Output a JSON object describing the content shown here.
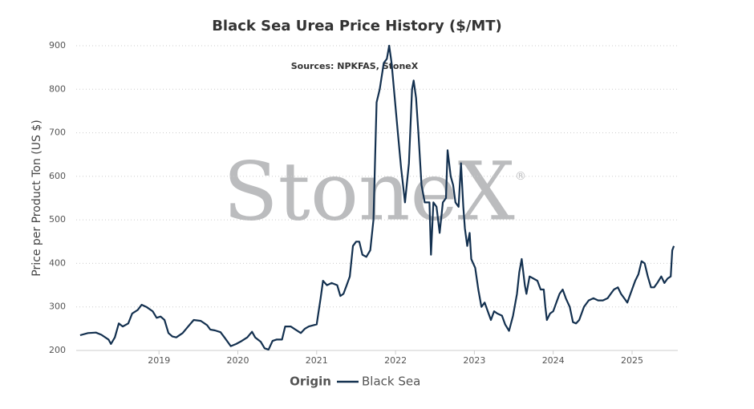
{
  "chart_data": {
    "type": "line",
    "title": "Black Sea Urea Price History ($/MT)",
    "subtitle": "Sources: NPKFAS, StoneX",
    "y_label": "Price per Product Ton (US $)",
    "watermark": "StoneX",
    "watermark_mark": "®",
    "legend_title": "Origin",
    "legend": "bottom",
    "grid": true,
    "xlim": [
      2017.95,
      2025.58
    ],
    "xticks": [
      2019,
      2020,
      2021,
      2022,
      2023,
      2024,
      2025
    ],
    "ylim": [
      200,
      900
    ],
    "yticks": [
      200,
      300,
      400,
      500,
      600,
      700,
      800,
      900
    ],
    "x": [
      2018.0,
      2018.1,
      2018.2,
      2018.27,
      2018.36,
      2018.39,
      2018.44,
      2018.49,
      2018.54,
      2018.61,
      2018.66,
      2018.73,
      2018.78,
      2018.84,
      2018.92,
      2018.97,
      2019.02,
      2019.07,
      2019.12,
      2019.17,
      2019.22,
      2019.3,
      2019.37,
      2019.44,
      2019.53,
      2019.61,
      2019.65,
      2019.71,
      2019.78,
      2019.83,
      2019.91,
      2019.98,
      2020.05,
      2020.12,
      2020.18,
      2020.22,
      2020.29,
      2020.34,
      2020.39,
      2020.44,
      2020.49,
      2020.56,
      2020.6,
      2020.67,
      2020.73,
      2020.8,
      2020.85,
      2020.9,
      2021.0,
      2021.05,
      2021.08,
      2021.13,
      2021.19,
      2021.26,
      2021.3,
      2021.34,
      2021.38,
      2021.42,
      2021.46,
      2021.5,
      2021.54,
      2021.58,
      2021.63,
      2021.68,
      2021.72,
      2021.76,
      2021.8,
      2021.85,
      2021.89,
      2021.92,
      2021.95,
      2021.99,
      2022.03,
      2022.07,
      2022.12,
      2022.17,
      2022.21,
      2022.23,
      2022.26,
      2022.29,
      2022.33,
      2022.37,
      2022.43,
      2022.45,
      2022.48,
      2022.52,
      2022.56,
      2022.6,
      2022.64,
      2022.66,
      2022.7,
      2022.73,
      2022.76,
      2022.8,
      2022.83,
      2022.86,
      2022.88,
      2022.91,
      2022.94,
      2022.96,
      2023.01,
      2023.05,
      2023.09,
      2023.13,
      2023.17,
      2023.21,
      2023.25,
      2023.29,
      2023.35,
      2023.39,
      2023.44,
      2023.49,
      2023.54,
      2023.57,
      2023.6,
      2023.64,
      2023.66,
      2023.7,
      2023.75,
      2023.8,
      2023.84,
      2023.88,
      2023.9,
      2023.92,
      2023.96,
      2024.0,
      2024.04,
      2024.08,
      2024.12,
      2024.16,
      2024.21,
      2024.25,
      2024.29,
      2024.33,
      2024.39,
      2024.45,
      2024.51,
      2024.57,
      2024.63,
      2024.69,
      2024.73,
      2024.77,
      2024.82,
      2024.86,
      2024.9,
      2024.94,
      2024.98,
      2025.04,
      2025.08,
      2025.12,
      2025.16,
      2025.2,
      2025.24,
      2025.28,
      2025.32,
      2025.37,
      2025.41,
      2025.45,
      2025.49,
      2025.51,
      2025.53
    ],
    "series": [
      {
        "name": "Black Sea",
        "color": "#13304f",
        "values": [
          235,
          240,
          241,
          236,
          225,
          215,
          230,
          262,
          255,
          262,
          285,
          293,
          305,
          300,
          290,
          275,
          278,
          270,
          240,
          232,
          230,
          240,
          255,
          270,
          268,
          258,
          248,
          246,
          242,
          230,
          210,
          215,
          222,
          230,
          243,
          230,
          220,
          205,
          202,
          222,
          225,
          225,
          255,
          255,
          248,
          240,
          250,
          255,
          260,
          320,
          360,
          350,
          355,
          350,
          325,
          330,
          350,
          370,
          440,
          450,
          450,
          420,
          415,
          430,
          500,
          770,
          800,
          860,
          870,
          900,
          860,
          780,
          700,
          620,
          540,
          630,
          800,
          820,
          780,
          700,
          580,
          540,
          540,
          420,
          540,
          530,
          470,
          540,
          550,
          660,
          600,
          580,
          540,
          530,
          630,
          530,
          480,
          440,
          470,
          410,
          390,
          340,
          300,
          310,
          290,
          270,
          290,
          285,
          280,
          260,
          245,
          280,
          330,
          380,
          410,
          350,
          330,
          370,
          365,
          360,
          340,
          340,
          300,
          270,
          285,
          290,
          310,
          330,
          340,
          320,
          300,
          265,
          262,
          270,
          300,
          315,
          320,
          315,
          315,
          320,
          330,
          340,
          345,
          330,
          320,
          310,
          330,
          360,
          375,
          405,
          400,
          370,
          345,
          345,
          355,
          370,
          355,
          365,
          370,
          430,
          440
        ]
      }
    ]
  }
}
